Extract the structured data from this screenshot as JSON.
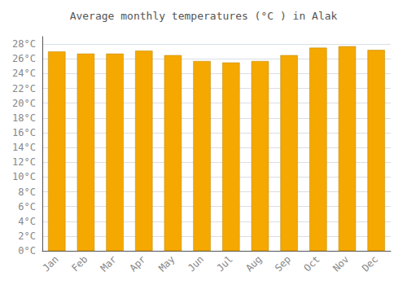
{
  "chart_data": {
    "type": "bar",
    "title": "Average monthly temperatures (°C ) in Alak",
    "categories": [
      "Jan",
      "Feb",
      "Mar",
      "Apr",
      "May",
      "Jun",
      "Jul",
      "Aug",
      "Sep",
      "Oct",
      "Nov",
      "Dec"
    ],
    "values": [
      27.0,
      26.7,
      26.7,
      27.1,
      26.5,
      25.7,
      25.5,
      25.7,
      26.5,
      27.5,
      27.7,
      27.2
    ],
    "color": "#F5A800",
    "ylim": [
      0,
      29
    ],
    "yticks": [
      {
        "value": 0,
        "label": "0°C"
      },
      {
        "value": 2,
        "label": "2°C"
      },
      {
        "value": 4,
        "label": "4°C"
      },
      {
        "value": 6,
        "label": "6°C"
      },
      {
        "value": 8,
        "label": "8°C"
      },
      {
        "value": 10,
        "label": "10°C"
      },
      {
        "value": 12,
        "label": "12°C"
      },
      {
        "value": 14,
        "label": "14°C"
      },
      {
        "value": 16,
        "label": "16°C"
      },
      {
        "value": 18,
        "label": "18°C"
      },
      {
        "value": 20,
        "label": "20°C"
      },
      {
        "value": 22,
        "label": "22°C"
      },
      {
        "value": 24,
        "label": "24°C"
      },
      {
        "value": 26,
        "label": "26°C"
      },
      {
        "value": 28,
        "label": "28°C"
      }
    ],
    "grid": true
  }
}
